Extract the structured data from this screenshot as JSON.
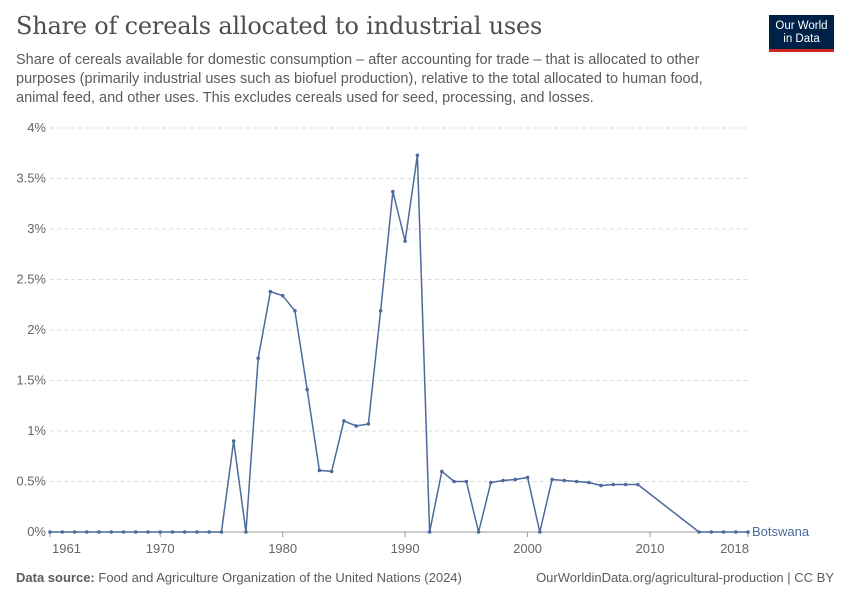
{
  "header": {
    "title": "Share of cereals allocated to industrial uses",
    "subtitle": "Share of cereals available for domestic consumption – after accounting for trade – that is allocated to other purposes (primarily industrial uses such as biofuel production), relative to the total allocated to human food, animal feed, and other uses. This excludes cereals used for seed, processing, and losses."
  },
  "logo": {
    "line1": "Our World",
    "line2": "in Data"
  },
  "footer": {
    "source_label": "Data source:",
    "source_text": "Food and Agriculture Organization of the United Nations (2024)",
    "url_text": "OurWorldinData.org/agricultural-production | CC BY"
  },
  "colors": {
    "series": "#4c6a9c",
    "grid": "#dddddd",
    "text": "#5b5b5b"
  },
  "chart_data": {
    "type": "line",
    "title": "Share of cereals allocated to industrial uses",
    "xlim": [
      1961,
      2018
    ],
    "ylim": [
      0,
      4
    ],
    "x_ticks": [
      1961,
      1970,
      1980,
      1990,
      2000,
      2010,
      2018
    ],
    "y_ticks": [
      {
        "value": 0,
        "label": "0%"
      },
      {
        "value": 0.5,
        "label": "0.5%"
      },
      {
        "value": 1,
        "label": "1%"
      },
      {
        "value": 1.5,
        "label": "1.5%"
      },
      {
        "value": 2,
        "label": "2%"
      },
      {
        "value": 2.5,
        "label": "2.5%"
      },
      {
        "value": 3,
        "label": "3%"
      },
      {
        "value": 3.5,
        "label": "3.5%"
      },
      {
        "value": 4,
        "label": "4%"
      }
    ],
    "grid": true,
    "series": [
      {
        "name": "Botswana",
        "points": [
          [
            1961,
            0
          ],
          [
            1962,
            0
          ],
          [
            1963,
            0
          ],
          [
            1964,
            0
          ],
          [
            1965,
            0
          ],
          [
            1966,
            0
          ],
          [
            1967,
            0
          ],
          [
            1968,
            0
          ],
          [
            1969,
            0
          ],
          [
            1970,
            0
          ],
          [
            1971,
            0
          ],
          [
            1972,
            0
          ],
          [
            1973,
            0
          ],
          [
            1974,
            0
          ],
          [
            1975,
            0
          ],
          [
            1976,
            0.9
          ],
          [
            1977,
            0
          ],
          [
            1978,
            1.72
          ],
          [
            1979,
            2.38
          ],
          [
            1980,
            2.34
          ],
          [
            1981,
            2.19
          ],
          [
            1982,
            1.41
          ],
          [
            1983,
            0.61
          ],
          [
            1984,
            0.6
          ],
          [
            1985,
            1.1
          ],
          [
            1986,
            1.05
          ],
          [
            1987,
            1.07
          ],
          [
            1988,
            2.19
          ],
          [
            1989,
            3.37
          ],
          [
            1990,
            2.88
          ],
          [
            1991,
            3.73
          ],
          [
            1992,
            0
          ],
          [
            1993,
            0.6
          ],
          [
            1994,
            0.5
          ],
          [
            1995,
            0.5
          ],
          [
            1996,
            0
          ],
          [
            1997,
            0.49
          ],
          [
            1998,
            0.51
          ],
          [
            1999,
            0.52
          ],
          [
            2000,
            0.54
          ],
          [
            2001,
            0
          ],
          [
            2002,
            0.52
          ],
          [
            2003,
            0.51
          ],
          [
            2004,
            0.5
          ],
          [
            2005,
            0.49
          ],
          [
            2006,
            0.46
          ],
          [
            2007,
            0.47
          ],
          [
            2008,
            0.47
          ],
          [
            2009,
            0.47
          ],
          [
            2014,
            0
          ],
          [
            2015,
            0
          ],
          [
            2016,
            0
          ],
          [
            2017,
            0
          ],
          [
            2018,
            0
          ]
        ]
      }
    ]
  }
}
